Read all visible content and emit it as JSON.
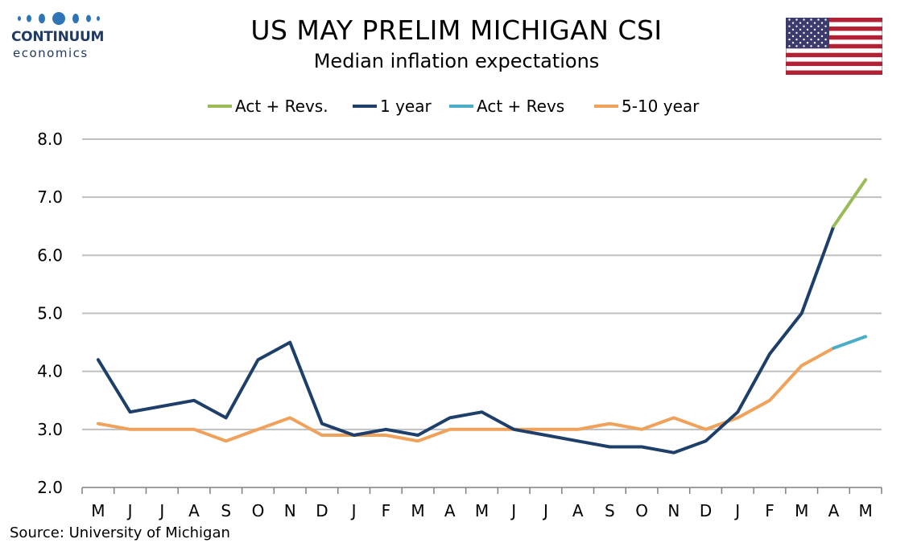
{
  "logo": {
    "name": "CONTINUUM",
    "sub": "economics"
  },
  "title": "US MAY PRELIM MICHIGAN CSI",
  "subtitle": "Median inflation expectations",
  "source": "Source: University of Michigan",
  "flag_icon": "us-flag-icon",
  "colors": {
    "one_year": "#1f3f6b",
    "five_ten_year": "#f0a15a",
    "act_revs_1y": "#9bbb59",
    "act_revs_5y": "#4bacc6",
    "grid": "#bfbfbf"
  },
  "chart_data": {
    "type": "line",
    "categories": [
      "M",
      "J",
      "J",
      "A",
      "S",
      "O",
      "N",
      "D",
      "J",
      "F",
      "M",
      "A",
      "M",
      "J",
      "J",
      "A",
      "S",
      "O",
      "N",
      "D",
      "J",
      "F",
      "M",
      "A",
      "M"
    ],
    "ylim": [
      2.0,
      8.0
    ],
    "yticks": [
      "2.0",
      "3.0",
      "4.0",
      "5.0",
      "6.0",
      "7.0",
      "8.0"
    ],
    "grid": true,
    "legend": "top",
    "series": [
      {
        "name": "Act + Revs.",
        "color": "#9bbb59",
        "values": [
          null,
          null,
          null,
          null,
          null,
          null,
          null,
          null,
          null,
          null,
          null,
          null,
          null,
          null,
          null,
          null,
          null,
          null,
          null,
          null,
          null,
          null,
          null,
          6.5,
          7.3
        ]
      },
      {
        "name": "1 year",
        "color": "#1f3f6b",
        "values": [
          4.2,
          3.3,
          3.4,
          3.5,
          3.2,
          4.2,
          4.5,
          3.1,
          2.9,
          3.0,
          2.9,
          3.2,
          3.3,
          3.0,
          2.9,
          2.8,
          2.7,
          2.7,
          2.6,
          2.8,
          3.3,
          4.3,
          5.0,
          6.5,
          null
        ]
      },
      {
        "name": "Act + Revs",
        "color": "#4bacc6",
        "values": [
          null,
          null,
          null,
          null,
          null,
          null,
          null,
          null,
          null,
          null,
          null,
          null,
          null,
          null,
          null,
          null,
          null,
          null,
          null,
          null,
          null,
          null,
          null,
          4.4,
          4.6
        ]
      },
      {
        "name": "5-10 year",
        "color": "#f0a15a",
        "values": [
          3.1,
          3.0,
          3.0,
          3.0,
          2.8,
          3.0,
          3.2,
          2.9,
          2.9,
          2.9,
          2.8,
          3.0,
          3.0,
          3.0,
          3.0,
          3.0,
          3.1,
          3.0,
          3.2,
          3.0,
          3.2,
          3.5,
          4.1,
          4.4,
          null
        ]
      }
    ]
  }
}
